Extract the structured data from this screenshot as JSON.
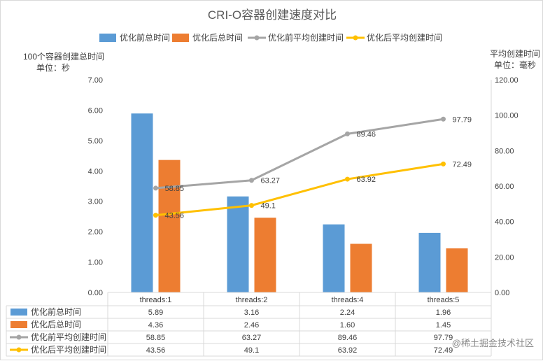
{
  "chart_data": {
    "type": "bar",
    "title": "CRI-O容器创建速度对比",
    "categories": [
      "threads:1",
      "threads:2",
      "threads:4",
      "threads:5"
    ],
    "series": [
      {
        "name": "优化前总时间",
        "type": "bar",
        "axis": "left",
        "color": "#5b9bd5",
        "values": [
          5.89,
          3.16,
          2.24,
          1.96
        ],
        "labels": [
          "5.89",
          "3.16",
          "2.24",
          "1.96"
        ]
      },
      {
        "name": "优化后总时间",
        "type": "bar",
        "axis": "left",
        "color": "#ed7d31",
        "values": [
          4.36,
          2.46,
          1.6,
          1.45
        ],
        "labels": [
          "4.36",
          "2.46",
          "1.60",
          "1.45"
        ]
      },
      {
        "name": "优化前平均创建时间",
        "type": "line",
        "axis": "right",
        "color": "#a5a5a5",
        "values": [
          58.85,
          63.27,
          89.46,
          97.79
        ],
        "labels": [
          "58.85",
          "63.27",
          "89.46",
          "97.79"
        ]
      },
      {
        "name": "优化后平均创建时间",
        "type": "line",
        "axis": "right",
        "color": "#ffc000",
        "values": [
          43.56,
          49.1,
          63.92,
          72.49
        ],
        "labels": [
          "43.56",
          "49.1",
          "63.92",
          "72.49"
        ]
      }
    ],
    "y_left": {
      "label_line1": "100个容器创建总时间",
      "label_line2": "单位：秒",
      "range": [
        0,
        7
      ],
      "ticks": [
        "0.00",
        "1.00",
        "2.00",
        "3.00",
        "4.00",
        "5.00",
        "6.00",
        "7.00"
      ]
    },
    "y_right": {
      "label_line1": "平均创建时间",
      "label_line2": "单位：毫秒",
      "range": [
        0,
        120
      ],
      "ticks": [
        "0.00",
        "20.00",
        "40.00",
        "60.00",
        "80.00",
        "100.00",
        "120.00"
      ]
    },
    "legend_position": "top",
    "data_table": true
  },
  "watermark": "@稀土掘金技术社区"
}
